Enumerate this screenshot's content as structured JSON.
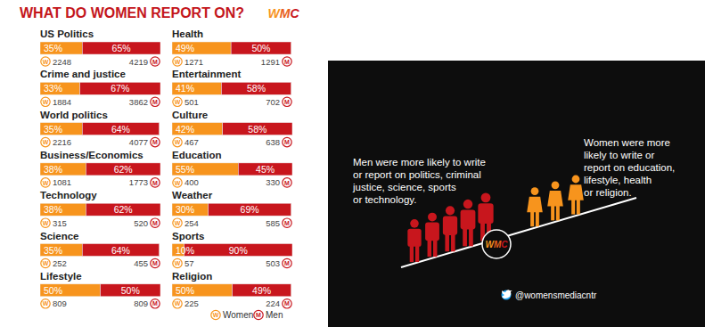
{
  "chart_data": {
    "type": "bar",
    "title": "WHAT DO WOMEN REPORT ON?",
    "orientation": "horizontal",
    "stacked": true,
    "data_labels": true,
    "tick_labels": false,
    "legend": "bottom",
    "xlim": [
      0,
      100
    ],
    "categories": [
      "US Politics",
      "Crime and justice",
      "World politics",
      "Business/Economics",
      "Technology",
      "Science",
      "Lifestyle",
      "Health",
      "Entertainment",
      "Culture",
      "Education",
      "Weather",
      "Sports",
      "Religion"
    ],
    "series": [
      {
        "name": "Women",
        "badge": "W",
        "color": "#f7941d",
        "values": [
          35,
          33,
          35,
          38,
          38,
          35,
          50,
          49,
          41,
          42,
          55,
          30,
          10,
          50
        ],
        "value_labels": [
          "35%",
          "33%",
          "35%",
          "38%",
          "38%",
          "35%",
          "50%",
          "49%",
          "41%",
          "42%",
          "55%",
          "30%",
          "10%",
          "50%"
        ],
        "counts": [
          2248,
          1884,
          2216,
          1081,
          315,
          252,
          809,
          1271,
          501,
          467,
          400,
          254,
          57,
          225
        ]
      },
      {
        "name": "Men",
        "badge": "M",
        "color": "#c8161d",
        "values": [
          65,
          67,
          64,
          62,
          62,
          64,
          50,
          50,
          58,
          58,
          45,
          69,
          90,
          49
        ],
        "value_labels": [
          "65%",
          "67%",
          "64%",
          "62%",
          "62%",
          "64%",
          "50%",
          "50%",
          "58%",
          "58%",
          "45%",
          "69%",
          "90%",
          "49%"
        ],
        "counts": [
          4219,
          3862,
          4077,
          1773,
          520,
          455,
          809,
          1291,
          702,
          638,
          330,
          585,
          503,
          224
        ]
      }
    ]
  },
  "logo": "WMC",
  "panel": {
    "men_text": [
      "Men were more likely to write",
      "or report on politics, criminal",
      "justice, science, sports",
      "or technology."
    ],
    "women_text": [
      "Women were more",
      "likely to write or",
      "report on education,",
      "lifestyle, health",
      "or religion."
    ],
    "handle": "@womensmediacntr"
  }
}
